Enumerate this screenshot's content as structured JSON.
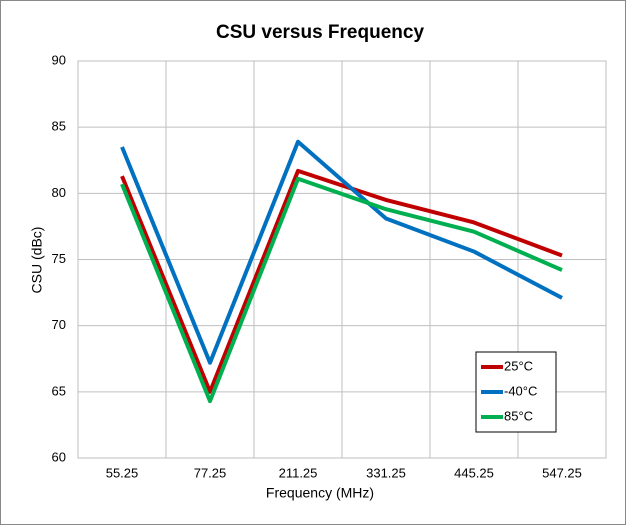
{
  "chart_data": {
    "type": "line",
    "title": "CSU versus Frequency",
    "x_label": "Frequency (MHz)",
    "y_label": "CSU (dBc)",
    "categories": [
      "55.25",
      "77.25",
      "211.25",
      "331.25",
      "445.25",
      "547.25"
    ],
    "series": [
      {
        "name": "25°C",
        "color": "#c00000",
        "values": [
          81.3,
          65.0,
          81.7,
          79.5,
          77.8,
          75.3
        ]
      },
      {
        "name": "-40°C",
        "color": "#0070c0",
        "values": [
          83.5,
          67.2,
          83.9,
          78.1,
          75.6,
          72.1
        ]
      },
      {
        "name": "85°C",
        "color": "#00b050",
        "values": [
          80.7,
          64.3,
          81.1,
          78.8,
          77.1,
          74.2
        ]
      }
    ],
    "ylim": [
      60,
      90
    ],
    "yticks": [
      60,
      65,
      70,
      75,
      80,
      85,
      90
    ],
    "grid": true,
    "legend": "lower-right"
  }
}
